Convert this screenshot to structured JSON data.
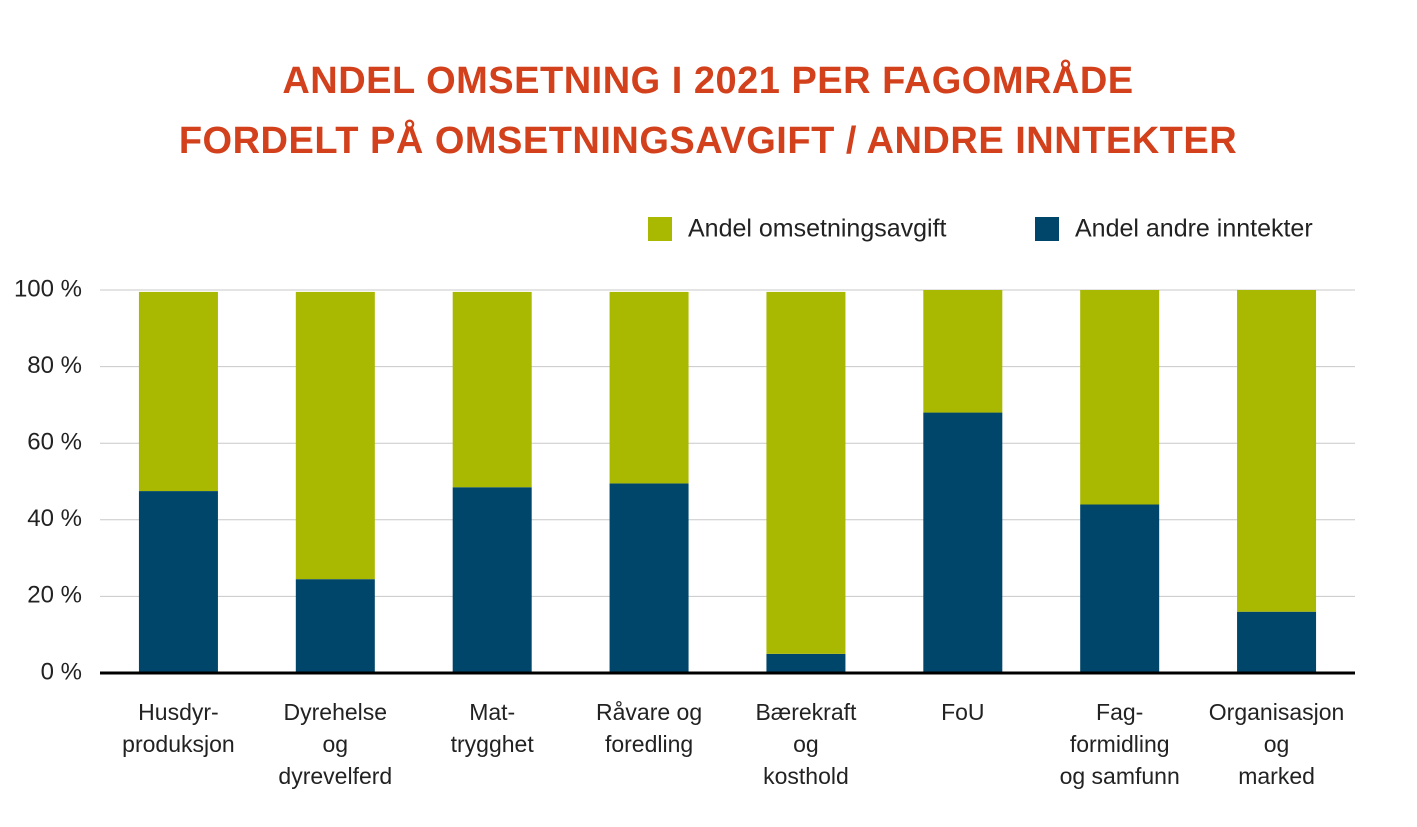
{
  "chart_data": {
    "type": "stacked-bar",
    "title": [
      "ANDEL OMSETNING I 2021 PER FAGOMRÅDE",
      "FORDELT PÅ OMSETNINGSAVGIFT / ANDRE INNTEKTER"
    ],
    "categories": [
      "Husdyr-\nproduksjon",
      "Dyrehelse\nog\ndyrevelferd",
      "Mat-\ntrygghet",
      "Råvare og\nforedling",
      "Bærekraft\nog\nkosthold",
      "FoU",
      "Fag-\nformidling\nog samfunn",
      "Organisasjon\nog\nmarked"
    ],
    "series": [
      {
        "name": "Andel andre inntekter",
        "color": "#00456a",
        "values": [
          47.5,
          24.5,
          48.5,
          49.5,
          5,
          68,
          44,
          16
        ]
      },
      {
        "name": "Andel omsetningsavgift",
        "color": "#a9b800",
        "values": [
          52,
          75,
          51,
          50,
          94.5,
          32,
          56,
          84
        ]
      }
    ],
    "ylim": [
      0,
      100
    ],
    "yticks": [
      {
        "value": 0,
        "label": "0 %"
      },
      {
        "value": 20,
        "label": "20 %"
      },
      {
        "value": 40,
        "label": "40 %"
      },
      {
        "value": 60,
        "label": "60 %"
      },
      {
        "value": 80,
        "label": "80 %"
      },
      {
        "value": 100,
        "label": "100 %"
      }
    ],
    "grid": true,
    "legend": "top-right"
  }
}
